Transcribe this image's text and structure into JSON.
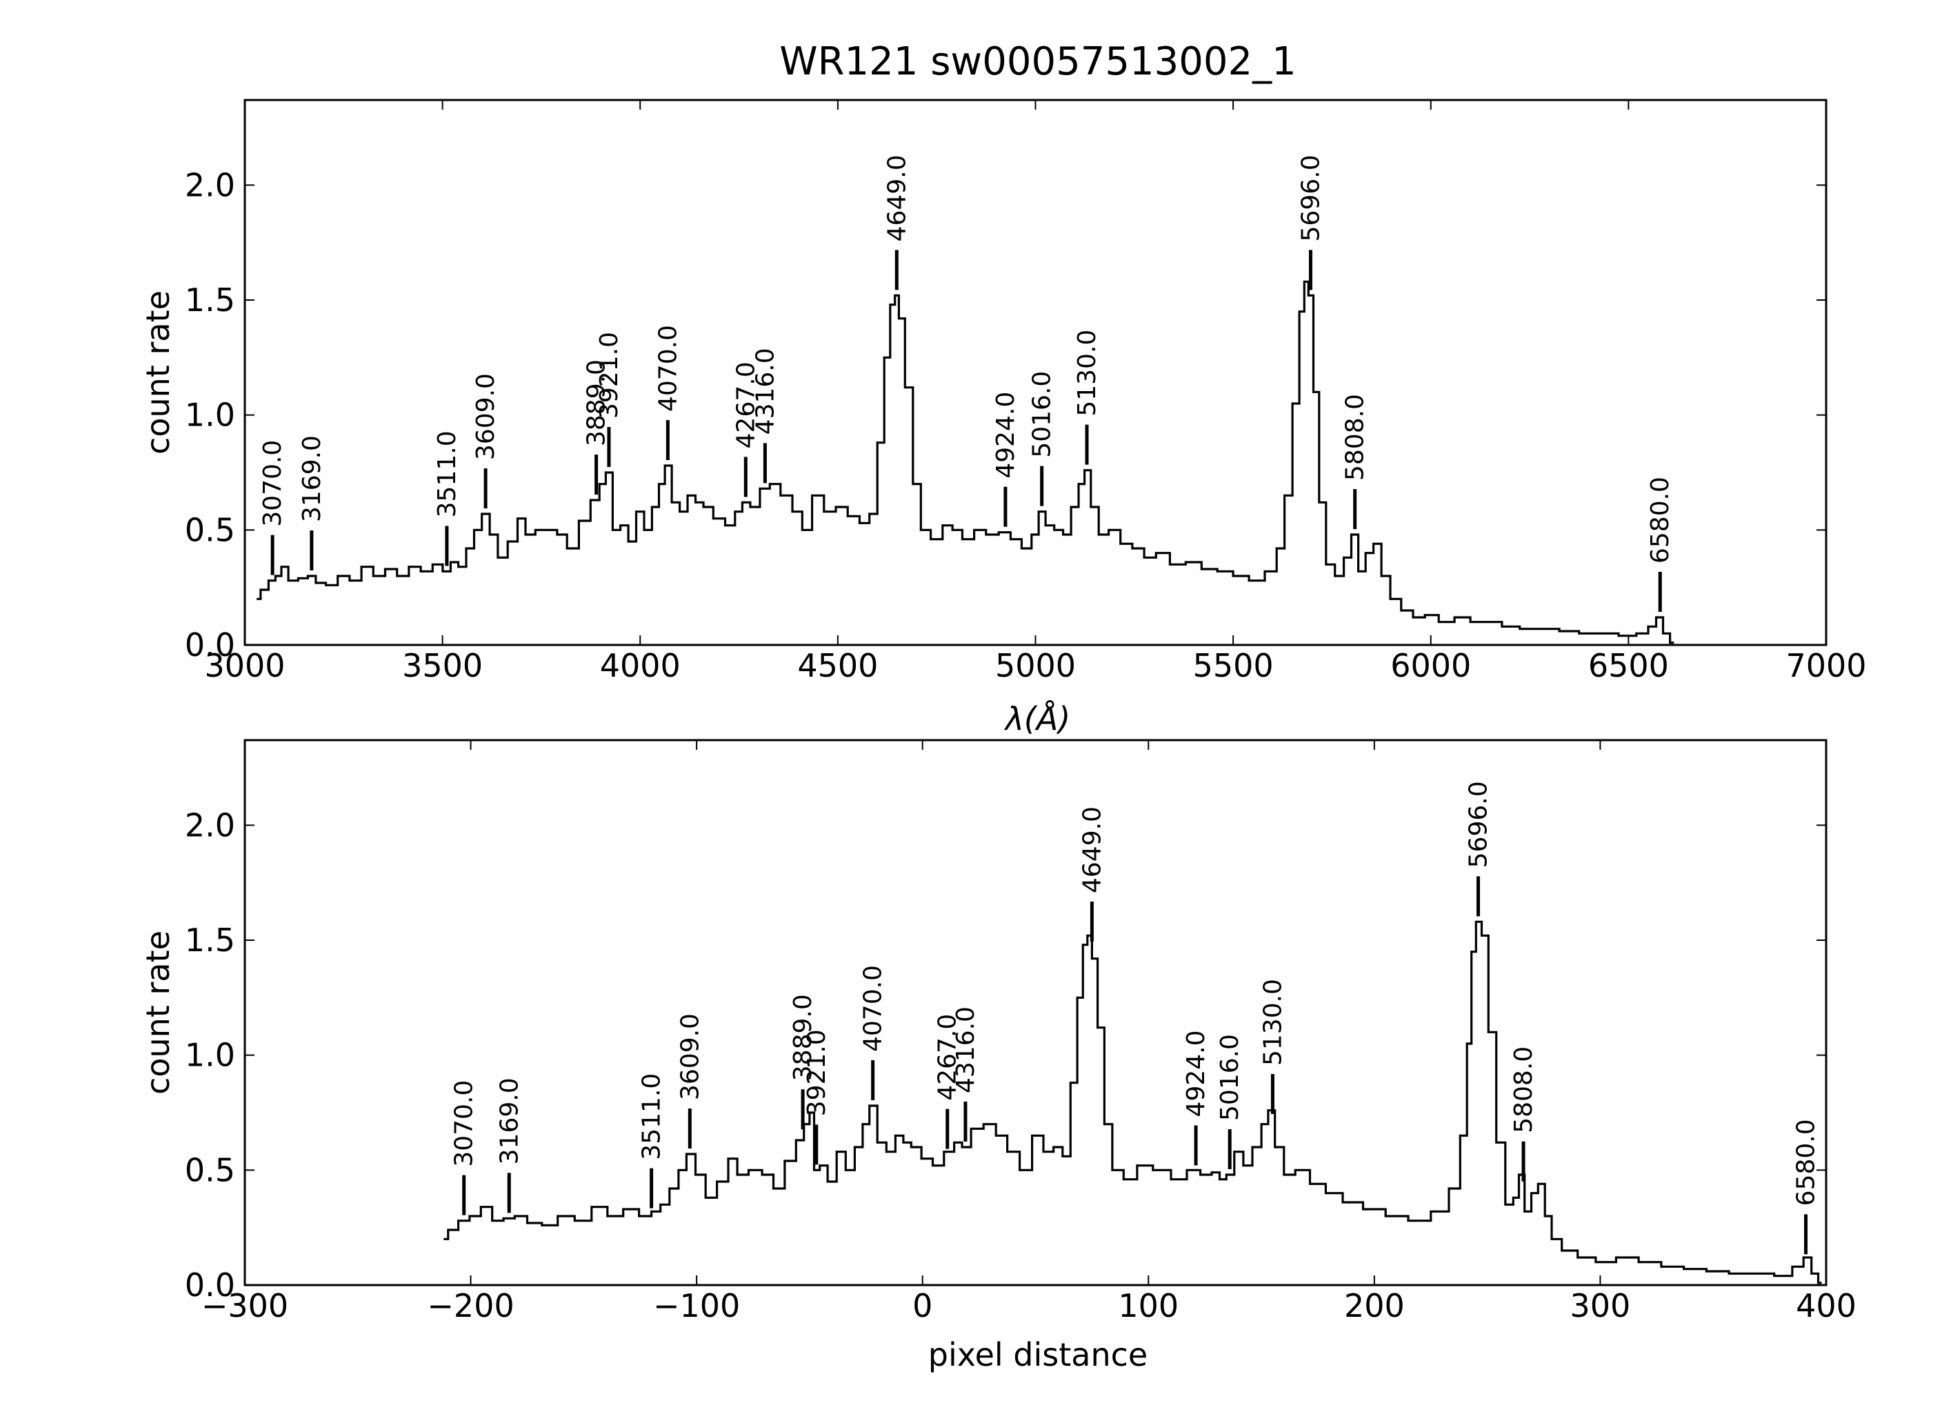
{
  "title": "WR121  sw00057513002_1",
  "colors": {
    "line": "#000000",
    "background": "#ffffff"
  },
  "chart_data": [
    {
      "type": "line",
      "xlabel": "λ(Å)",
      "ylabel": "count rate",
      "xlim": [
        3000,
        7000
      ],
      "ylim": [
        0,
        2.37
      ],
      "xticks": [
        3000,
        3500,
        4000,
        4500,
        5000,
        5500,
        6000,
        6500,
        7000
      ],
      "yticks": [
        0.0,
        0.5,
        1.0,
        1.5,
        2.0
      ],
      "xtick_labels": [
        "3000",
        "3500",
        "4000",
        "4500",
        "5000",
        "5500",
        "6000",
        "6500",
        "7000"
      ],
      "ytick_labels": [
        "0.0",
        "0.5",
        "1.0",
        "1.5",
        "2.0"
      ],
      "grid": false,
      "step": true,
      "series": [
        {
          "x": [
            3030,
            3050,
            3070,
            3085,
            3100,
            3120,
            3150,
            3169,
            3190,
            3220,
            3250,
            3280,
            3310,
            3340,
            3370,
            3400,
            3430,
            3460,
            3490,
            3511,
            3530,
            3550,
            3570,
            3590,
            3609,
            3630,
            3650,
            3680,
            3700,
            3720,
            3750,
            3780,
            3800,
            3830,
            3860,
            3889,
            3905,
            3921,
            3940,
            3960,
            3980,
            4000,
            4020,
            4040,
            4055,
            4070,
            4090,
            4110,
            4130,
            4150,
            4170,
            4200,
            4230,
            4250,
            4267,
            4290,
            4316,
            4340,
            4370,
            4400,
            4420,
            4450,
            4480,
            4510,
            4540,
            4570,
            4590,
            4610,
            4625,
            4640,
            4649,
            4660,
            4680,
            4700,
            4720,
            4750,
            4780,
            4800,
            4830,
            4860,
            4890,
            4924,
            4950,
            4980,
            5000,
            5016,
            5035,
            5060,
            5080,
            5100,
            5118,
            5130,
            5150,
            5170,
            5200,
            5230,
            5260,
            5290,
            5320,
            5360,
            5400,
            5440,
            5480,
            5520,
            5560,
            5600,
            5620,
            5640,
            5660,
            5675,
            5685,
            5696,
            5710,
            5725,
            5745,
            5770,
            5790,
            5808,
            5825,
            5845,
            5865,
            5885,
            5910,
            5940,
            5970,
            6000,
            6040,
            6080,
            6120,
            6160,
            6200,
            6250,
            6300,
            6350,
            6400,
            6450,
            6500,
            6540,
            6560,
            6580,
            6595,
            6615
          ],
          "y": [
            0.2,
            0.24,
            0.28,
            0.3,
            0.34,
            0.28,
            0.29,
            0.3,
            0.27,
            0.26,
            0.3,
            0.28,
            0.34,
            0.3,
            0.33,
            0.3,
            0.34,
            0.32,
            0.35,
            0.32,
            0.36,
            0.34,
            0.42,
            0.5,
            0.57,
            0.48,
            0.38,
            0.45,
            0.55,
            0.48,
            0.5,
            0.5,
            0.48,
            0.42,
            0.54,
            0.63,
            0.7,
            0.75,
            0.5,
            0.52,
            0.45,
            0.58,
            0.5,
            0.6,
            0.7,
            0.78,
            0.62,
            0.58,
            0.65,
            0.62,
            0.6,
            0.55,
            0.52,
            0.58,
            0.62,
            0.6,
            0.68,
            0.7,
            0.65,
            0.58,
            0.5,
            0.65,
            0.58,
            0.6,
            0.56,
            0.53,
            0.57,
            0.88,
            1.25,
            1.48,
            1.52,
            1.42,
            1.12,
            0.7,
            0.5,
            0.46,
            0.52,
            0.5,
            0.46,
            0.5,
            0.48,
            0.49,
            0.46,
            0.42,
            0.48,
            0.58,
            0.52,
            0.5,
            0.48,
            0.6,
            0.7,
            0.76,
            0.6,
            0.48,
            0.5,
            0.44,
            0.42,
            0.38,
            0.4,
            0.35,
            0.36,
            0.33,
            0.32,
            0.3,
            0.28,
            0.32,
            0.42,
            0.65,
            1.05,
            1.45,
            1.58,
            1.52,
            1.1,
            0.62,
            0.35,
            0.3,
            0.38,
            0.48,
            0.32,
            0.4,
            0.44,
            0.3,
            0.2,
            0.15,
            0.12,
            0.13,
            0.1,
            0.12,
            0.1,
            0.1,
            0.08,
            0.07,
            0.07,
            0.06,
            0.05,
            0.05,
            0.04,
            0.05,
            0.08,
            0.12,
            0.05,
            0.01
          ]
        }
      ],
      "annotations": [
        {
          "x": 3070,
          "label": "3070.0"
        },
        {
          "x": 3169,
          "label": "3169.0"
        },
        {
          "x": 3511,
          "label": "3511.0"
        },
        {
          "x": 3609,
          "label": "3609.0"
        },
        {
          "x": 3889,
          "label": "3889.0"
        },
        {
          "x": 3921,
          "label": "3921.0"
        },
        {
          "x": 4070,
          "label": "4070.0"
        },
        {
          "x": 4267,
          "label": "4267.0"
        },
        {
          "x": 4316,
          "label": "4316.0"
        },
        {
          "x": 4649,
          "label": "4649.0"
        },
        {
          "x": 4924,
          "label": "4924.0"
        },
        {
          "x": 5016,
          "label": "5016.0"
        },
        {
          "x": 5130,
          "label": "5130.0"
        },
        {
          "x": 5696,
          "label": "5696.0"
        },
        {
          "x": 5808,
          "label": "5808.0"
        },
        {
          "x": 6580,
          "label": "6580.0"
        }
      ]
    },
    {
      "type": "line",
      "xlabel": "pixel distance",
      "ylabel": "count rate",
      "xlim": [
        -300,
        400
      ],
      "ylim": [
        0,
        2.37
      ],
      "xticks": [
        -300,
        -200,
        -100,
        0,
        100,
        200,
        300,
        400
      ],
      "yticks": [
        0.0,
        0.5,
        1.0,
        1.5,
        2.0
      ],
      "xtick_labels": [
        "−300",
        "−200",
        "−100",
        "0",
        "100",
        "200",
        "300",
        "400"
      ],
      "ytick_labels": [
        "0.0",
        "0.5",
        "1.0",
        "1.5",
        "2.0"
      ],
      "grid": false,
      "step": true,
      "series": [
        {
          "x": [
            -212,
            -208,
            -203,
            -198,
            -193,
            -188,
            -183,
            -178,
            -172,
            -165,
            -158,
            -150,
            -143,
            -136,
            -129,
            -122,
            -118,
            -114,
            -110,
            -106,
            -103,
            -98,
            -94,
            -88,
            -84,
            -80,
            -74,
            -68,
            -64,
            -58,
            -54,
            -51,
            -49,
            -47,
            -44,
            -40,
            -36,
            -32,
            -28,
            -25,
            -22,
            -18,
            -14,
            -10,
            -7,
            -3,
            2,
            7,
            12,
            16,
            19,
            24,
            30,
            35,
            40,
            46,
            51,
            56,
            60,
            64,
            67,
            70,
            72,
            74,
            76,
            79,
            82,
            86,
            92,
            98,
            106,
            114,
            120,
            126,
            130,
            133,
            136,
            140,
            144,
            148,
            152,
            154,
            158,
            162,
            168,
            175,
            182,
            190,
            200,
            210,
            220,
            230,
            236,
            240,
            242,
            244,
            246,
            249,
            252,
            256,
            260,
            263,
            265,
            268,
            271,
            274,
            277,
            280,
            286,
            294,
            302,
            312,
            322,
            332,
            342,
            352,
            362,
            372,
            382,
            388,
            392,
            395,
            398
          ],
          "y": [
            0.2,
            0.24,
            0.28,
            0.3,
            0.34,
            0.28,
            0.29,
            0.3,
            0.27,
            0.26,
            0.3,
            0.28,
            0.34,
            0.3,
            0.33,
            0.3,
            0.32,
            0.35,
            0.42,
            0.5,
            0.57,
            0.48,
            0.38,
            0.45,
            0.55,
            0.48,
            0.5,
            0.48,
            0.42,
            0.54,
            0.63,
            0.7,
            0.75,
            0.5,
            0.52,
            0.45,
            0.58,
            0.5,
            0.6,
            0.7,
            0.78,
            0.62,
            0.58,
            0.65,
            0.62,
            0.6,
            0.55,
            0.52,
            0.58,
            0.62,
            0.6,
            0.68,
            0.7,
            0.65,
            0.58,
            0.5,
            0.65,
            0.58,
            0.6,
            0.56,
            0.88,
            1.25,
            1.48,
            1.52,
            1.42,
            1.12,
            0.7,
            0.5,
            0.46,
            0.52,
            0.5,
            0.46,
            0.5,
            0.48,
            0.49,
            0.46,
            0.48,
            0.58,
            0.52,
            0.6,
            0.7,
            0.76,
            0.6,
            0.48,
            0.5,
            0.44,
            0.4,
            0.36,
            0.33,
            0.3,
            0.28,
            0.32,
            0.42,
            0.65,
            1.05,
            1.45,
            1.58,
            1.52,
            1.1,
            0.62,
            0.35,
            0.38,
            0.48,
            0.32,
            0.4,
            0.44,
            0.3,
            0.2,
            0.15,
            0.12,
            0.1,
            0.12,
            0.1,
            0.08,
            0.07,
            0.06,
            0.05,
            0.05,
            0.04,
            0.08,
            0.12,
            0.05,
            0.01
          ]
        }
      ],
      "annotations": [
        {
          "x": -203,
          "label": "3070.0"
        },
        {
          "x": -183,
          "label": "3169.0"
        },
        {
          "x": -120,
          "label": "3511.0"
        },
        {
          "x": -103,
          "label": "3609.0"
        },
        {
          "x": -53,
          "label": "3889.0"
        },
        {
          "x": -47,
          "label": "3921.0"
        },
        {
          "x": -22,
          "label": "4070.0"
        },
        {
          "x": 11,
          "label": "4267.0"
        },
        {
          "x": 19,
          "label": "4316.0"
        },
        {
          "x": 75,
          "label": "4649.0"
        },
        {
          "x": 121,
          "label": "4924.0"
        },
        {
          "x": 136,
          "label": "5016.0"
        },
        {
          "x": 155,
          "label": "5130.0"
        },
        {
          "x": 246,
          "label": "5696.0"
        },
        {
          "x": 266,
          "label": "5808.0"
        },
        {
          "x": 391,
          "label": "6580.0"
        }
      ]
    }
  ]
}
